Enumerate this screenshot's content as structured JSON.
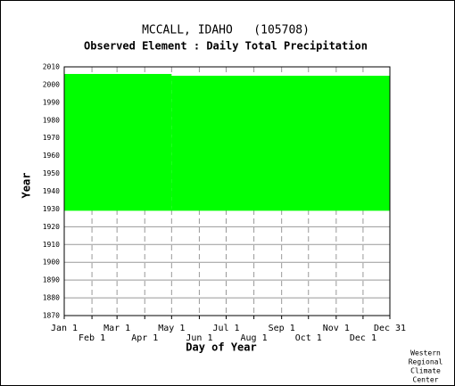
{
  "chart_data": {
    "type": "availability",
    "title": "MCCALL, IDAHO   (105708)",
    "subtitle": "Observed Element : Daily Total Precipitation",
    "x_label": "Day of Year",
    "y_label": "Year",
    "color": "#00ff00",
    "bands": [
      {
        "x": [
          1,
          121
        ],
        "y": [
          1929,
          2006
        ]
      },
      {
        "x": [
          121,
          365
        ],
        "y": [
          1929,
          2005
        ]
      }
    ],
    "xlim": [
      1,
      365
    ],
    "xticks": [
      {
        "value": 1,
        "label": "Jan 1"
      },
      {
        "value": 32,
        "label": "Feb 1"
      },
      {
        "value": 60,
        "label": "Mar 1"
      },
      {
        "value": 91,
        "label": "Apr 1"
      },
      {
        "value": 121,
        "label": "May 1"
      },
      {
        "value": 152,
        "label": "Jun 1"
      },
      {
        "value": 182,
        "label": "Jul 1"
      },
      {
        "value": 213,
        "label": "Aug 1"
      },
      {
        "value": 244,
        "label": "Sep 1"
      },
      {
        "value": 274,
        "label": "Oct 1"
      },
      {
        "value": 305,
        "label": "Nov 1"
      },
      {
        "value": 335,
        "label": "Dec 1"
      },
      {
        "value": 365,
        "label": "Dec 31"
      }
    ],
    "ylim": [
      1870,
      2010
    ],
    "yticks": [
      1870,
      1880,
      1890,
      1900,
      1910,
      1920,
      1930,
      1940,
      1950,
      1960,
      1970,
      1980,
      1990,
      2000,
      2010
    ],
    "grid": true,
    "credit": [
      "Western",
      "Regional",
      "Climate",
      "Center"
    ]
  }
}
